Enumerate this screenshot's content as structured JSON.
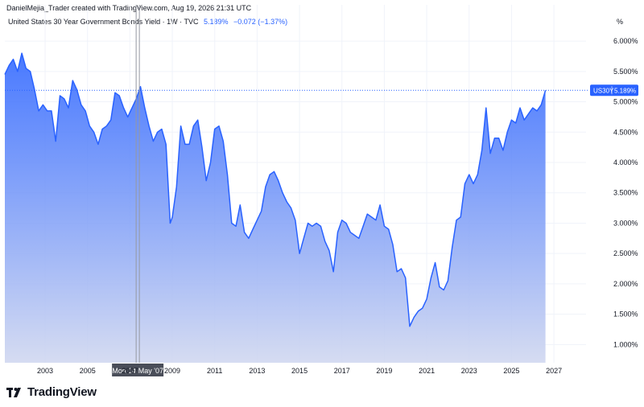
{
  "header": {
    "created_by": "DanielMejia_Trader created with TradingView.com, Aug 19, 2026 21:31 UTC"
  },
  "legend": {
    "symbol": "United States 30 Year Government Bonds Yield · 1W · TVC",
    "value": "5.189%",
    "change": "−0.072 (−1.37%)"
  },
  "unit_label": "%",
  "price_tag": {
    "symbol": "US30Y",
    "value": "5.189%"
  },
  "crosshair": {
    "date_label": "Mon 14 May '07"
  },
  "footer": {
    "brand": "TradingView"
  },
  "colors": {
    "line": "#2962ff",
    "fill_top": "#2962ff",
    "fill_bottom": "#d1d8f0",
    "tag_bg": "#2962ff",
    "crosshair": "#9598a1",
    "crosshair_label_bg": "#4a4e59"
  },
  "chart_data": {
    "type": "area",
    "title": "United States 30 Year Government Bonds Yield · 1W · TVC",
    "xlabel": "",
    "ylabel": "%",
    "ylim": [
      0.7,
      6.2
    ],
    "xlim": [
      2001.1,
      2027.3
    ],
    "x_ticks": [
      "2003",
      "2005",
      "2007",
      "2009",
      "2011",
      "2013",
      "2015",
      "2017",
      "2019",
      "2021",
      "2023",
      "2025",
      "2027"
    ],
    "y_ticks": [
      "1.000%",
      "1.500%",
      "2.000%",
      "2.500%",
      "3.000%",
      "3.500%",
      "4.000%",
      "4.500%",
      "5.000%",
      "5.500%",
      "6.000%"
    ],
    "grid": true,
    "last_value": 5.189,
    "series": [
      {
        "name": "US30Y",
        "x": [
          2001.1,
          2001.3,
          2001.5,
          2001.7,
          2001.9,
          2002.1,
          2002.3,
          2002.5,
          2002.7,
          2002.9,
          2003.1,
          2003.3,
          2003.5,
          2003.7,
          2003.9,
          2004.1,
          2004.3,
          2004.5,
          2004.7,
          2004.9,
          2005.1,
          2005.3,
          2005.5,
          2005.7,
          2005.9,
          2006.1,
          2006.3,
          2006.5,
          2006.7,
          2006.9,
          2007.1,
          2007.3,
          2007.5,
          2007.7,
          2007.9,
          2008.1,
          2008.3,
          2008.5,
          2008.7,
          2008.9,
          2009.0,
          2009.2,
          2009.4,
          2009.6,
          2009.8,
          2010.0,
          2010.2,
          2010.4,
          2010.6,
          2010.8,
          2011.0,
          2011.2,
          2011.4,
          2011.6,
          2011.8,
          2012.0,
          2012.2,
          2012.4,
          2012.6,
          2012.8,
          2013.0,
          2013.2,
          2013.4,
          2013.6,
          2013.8,
          2014.0,
          2014.2,
          2014.4,
          2014.6,
          2014.8,
          2015.0,
          2015.2,
          2015.4,
          2015.6,
          2015.8,
          2016.0,
          2016.2,
          2016.4,
          2016.6,
          2016.8,
          2017.0,
          2017.2,
          2017.4,
          2017.6,
          2017.8,
          2018.0,
          2018.2,
          2018.4,
          2018.6,
          2018.8,
          2019.0,
          2019.2,
          2019.4,
          2019.6,
          2019.8,
          2020.0,
          2020.2,
          2020.4,
          2020.6,
          2020.8,
          2021.0,
          2021.2,
          2021.4,
          2021.6,
          2021.8,
          2022.0,
          2022.2,
          2022.4,
          2022.6,
          2022.8,
          2023.0,
          2023.2,
          2023.4,
          2023.6,
          2023.8,
          2024.0,
          2024.2,
          2024.4,
          2024.6,
          2024.8,
          2025.0,
          2025.2,
          2025.4,
          2025.6,
          2025.8,
          2026.0,
          2026.2,
          2026.4,
          2026.6
        ],
        "values": [
          5.45,
          5.6,
          5.7,
          5.5,
          5.8,
          5.55,
          5.5,
          5.2,
          4.85,
          4.95,
          4.85,
          4.85,
          4.35,
          5.1,
          5.05,
          4.9,
          5.35,
          5.2,
          4.95,
          4.85,
          4.6,
          4.5,
          4.3,
          4.55,
          4.6,
          4.7,
          5.15,
          5.1,
          4.9,
          4.75,
          4.9,
          5.05,
          5.25,
          4.9,
          4.6,
          4.35,
          4.5,
          4.55,
          4.3,
          3.0,
          3.1,
          3.6,
          4.6,
          4.3,
          4.3,
          4.6,
          4.7,
          4.25,
          3.7,
          4.0,
          4.55,
          4.6,
          4.35,
          3.8,
          3.0,
          2.95,
          3.3,
          2.85,
          2.75,
          2.9,
          3.05,
          3.2,
          3.6,
          3.8,
          3.85,
          3.7,
          3.5,
          3.35,
          3.25,
          3.05,
          2.5,
          2.75,
          3.0,
          2.95,
          3.0,
          2.95,
          2.7,
          2.55,
          2.2,
          2.85,
          3.05,
          3.0,
          2.85,
          2.8,
          2.75,
          2.95,
          3.15,
          3.1,
          3.05,
          3.3,
          2.95,
          2.9,
          2.65,
          2.2,
          2.25,
          2.1,
          1.3,
          1.45,
          1.55,
          1.6,
          1.75,
          2.1,
          2.35,
          1.95,
          1.9,
          2.05,
          2.6,
          3.05,
          3.1,
          3.65,
          3.8,
          3.65,
          3.8,
          4.2,
          4.9,
          4.15,
          4.4,
          4.4,
          4.2,
          4.5,
          4.7,
          4.65,
          4.9,
          4.7,
          4.8,
          4.9,
          4.85,
          4.95,
          5.189
        ]
      }
    ]
  }
}
